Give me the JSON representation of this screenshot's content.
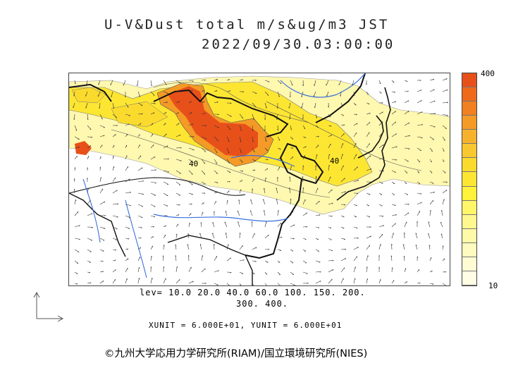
{
  "title": {
    "line1": "U-V&Dust total m/s&ug/m3 JST",
    "line2": "2022/09/30.03:00:00"
  },
  "colorbar": {
    "max_label": "400",
    "min_label": "10",
    "colors": [
      "#e8501a",
      "#ee6a1a",
      "#f08020",
      "#f49a26",
      "#f7b22d",
      "#f9c830",
      "#fbda2e",
      "#fde632",
      "#fff23a",
      "#fff66a",
      "#fff88e",
      "#fffaa8",
      "#fffbc0",
      "#fffcd4",
      "#fffde4"
    ]
  },
  "levels": {
    "line1": "lev= 10.0 20.0 40.0 60.0 100. 150. 200.",
    "line2": "300. 400."
  },
  "units": {
    "text": "XUNIT = 6.000E+01, YUNIT = 6.000E+01"
  },
  "map": {
    "contour_labels": [
      "40",
      "40"
    ],
    "colors": {
      "high": "#e8501a",
      "mid": "#f7b22d",
      "low": "#fff6a0",
      "river": "#3a70e0",
      "border": "#111111"
    }
  },
  "copyright": "©九州大学応用力学研究所(RIAM)/国立環境研究所(NIES)"
}
